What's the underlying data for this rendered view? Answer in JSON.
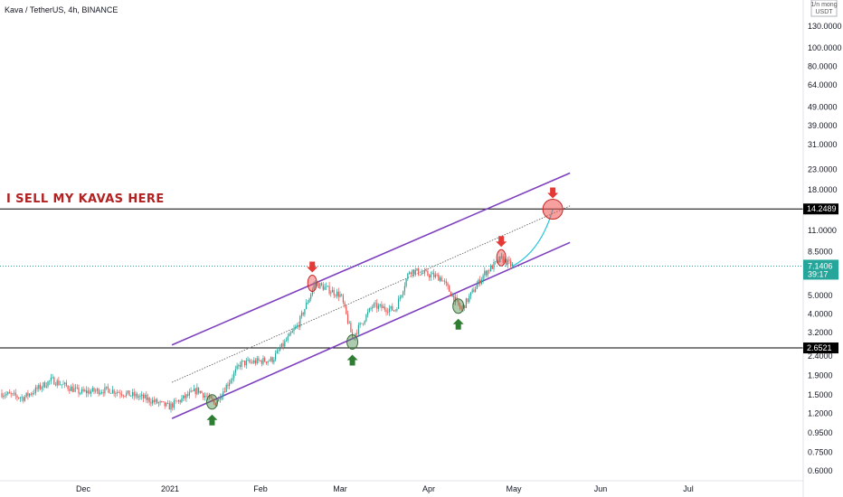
{
  "symbol": {
    "label": "Kava / TetherUS, 4h, BINANCE"
  },
  "axis_unit": {
    "top": "1/n mong",
    "currency": "USDT"
  },
  "colors": {
    "up": "#26a69a",
    "down": "#ef5350",
    "channel": "#7e3fbf",
    "horizontal": "#000000",
    "annotation": "#b22222",
    "price_badge": "#26a69a",
    "arrow_up": "#2e7d32",
    "arrow_down": "#e53935"
  },
  "annotation": "I SELL MY KAVAS HERE",
  "chart_data": {
    "type": "candlestick",
    "title": "Kava / TetherUS, 4h, BINANCE",
    "scale": "log",
    "y_ticks": [
      130.0,
      100.0,
      80.0,
      64.0,
      49.0,
      39.0,
      31.0,
      23.0,
      18.0,
      11.0,
      8.5,
      5.0,
      4.0,
      3.2,
      2.4,
      1.9,
      1.5,
      1.2,
      0.95,
      0.75,
      0.6
    ],
    "y_tick_labels": [
      "130.0000",
      "100.0000",
      "80.0000",
      "64.0000",
      "49.0000",
      "39.0000",
      "31.0000",
      "23.0000",
      "18.0000",
      "11.0000",
      "8.5000",
      "5.0000",
      "4.0000",
      "3.2000",
      "2.4000",
      "1.9000",
      "1.5000",
      "1.2000",
      "0.9500",
      "0.7500",
      "0.6000"
    ],
    "x_labels": [
      "Dec",
      "2021",
      "Feb",
      "Mar",
      "Apr",
      "May",
      "Jun",
      "Jul"
    ],
    "horizontal_levels": [
      {
        "value": 14.2489,
        "label": "14.2489"
      },
      {
        "value": 2.6521,
        "label": "2.6521"
      }
    ],
    "last_price": {
      "value": 7.1406,
      "label": "7.1406",
      "countdown": "39:17"
    },
    "price_path": [
      {
        "date": "2020-11-01",
        "price": 1.55
      },
      {
        "date": "2020-11-10",
        "price": 1.45
      },
      {
        "date": "2020-11-20",
        "price": 1.8
      },
      {
        "date": "2020-11-30",
        "price": 1.55
      },
      {
        "date": "2020-12-10",
        "price": 1.6
      },
      {
        "date": "2020-12-22",
        "price": 1.45
      },
      {
        "date": "2020-12-31",
        "price": 1.3
      },
      {
        "date": "2021-01-10",
        "price": 1.6
      },
      {
        "date": "2021-01-16",
        "price": 1.35
      },
      {
        "date": "2021-01-25",
        "price": 2.2
      },
      {
        "date": "2021-02-05",
        "price": 2.3
      },
      {
        "date": "2021-02-14",
        "price": 3.5
      },
      {
        "date": "2021-02-20",
        "price": 5.8
      },
      {
        "date": "2021-03-01",
        "price": 5.0
      },
      {
        "date": "2021-03-05",
        "price": 3.0
      },
      {
        "date": "2021-03-12",
        "price": 4.4
      },
      {
        "date": "2021-03-20",
        "price": 4.2
      },
      {
        "date": "2021-03-25",
        "price": 6.8
      },
      {
        "date": "2021-04-05",
        "price": 6.2
      },
      {
        "date": "2021-04-12",
        "price": 4.2
      },
      {
        "date": "2021-04-20",
        "price": 6.5
      },
      {
        "date": "2021-04-26",
        "price": 7.8
      },
      {
        "date": "2021-04-30",
        "price": 7.14
      }
    ],
    "channel": {
      "upper": [
        {
          "date": "2021-01-01",
          "price": 2.75
        },
        {
          "date": "2021-05-20",
          "price": 22.0
        }
      ],
      "lower": [
        {
          "date": "2021-01-01",
          "price": 1.13
        },
        {
          "date": "2021-05-20",
          "price": 9.5
        }
      ],
      "median": [
        {
          "date": "2021-01-01",
          "price": 1.75
        },
        {
          "date": "2021-05-20",
          "price": 14.8
        }
      ]
    },
    "projection": [
      {
        "date": "2021-04-30",
        "price": 7.14
      },
      {
        "date": "2021-05-08",
        "price": 8.6
      },
      {
        "date": "2021-05-14",
        "price": 14.2
      }
    ],
    "markers": [
      {
        "kind": "sell",
        "date": "2021-02-19",
        "price": 5.8
      },
      {
        "kind": "buy",
        "date": "2021-01-15",
        "price": 1.38
      },
      {
        "kind": "buy",
        "date": "2021-03-05",
        "price": 2.85
      },
      {
        "kind": "buy",
        "date": "2021-04-11",
        "price": 4.4
      },
      {
        "kind": "sell",
        "date": "2021-04-26",
        "price": 7.9
      },
      {
        "kind": "sell-target",
        "date": "2021-05-14",
        "price": 14.2
      }
    ]
  }
}
